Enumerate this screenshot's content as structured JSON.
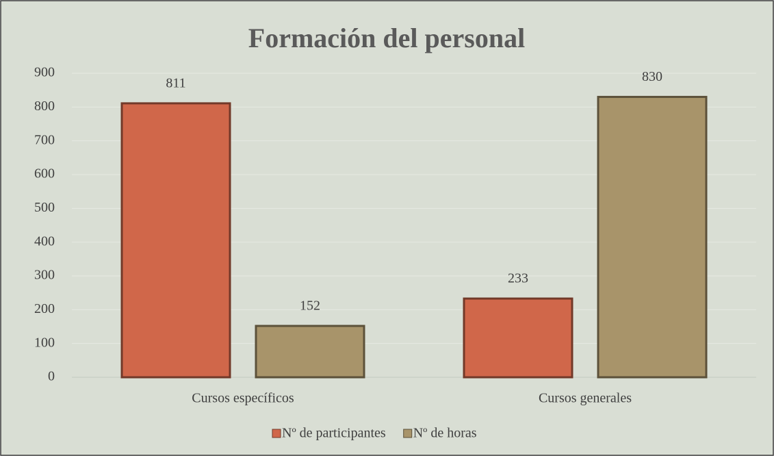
{
  "chart_data": {
    "type": "bar",
    "title": "Formación del personal",
    "categories": [
      "Cursos específicos",
      "Cursos generales"
    ],
    "series": [
      {
        "name": "Nº de participantes",
        "color": "#d0674a",
        "values": [
          811,
          233
        ]
      },
      {
        "name": "Nº de horas",
        "color": "#a8946a",
        "values": [
          152,
          830
        ]
      }
    ],
    "ylim": [
      0,
      900
    ],
    "yticks": [
      0,
      100,
      200,
      300,
      400,
      500,
      600,
      700,
      800,
      900
    ],
    "grid": true,
    "legend": "bottom"
  }
}
